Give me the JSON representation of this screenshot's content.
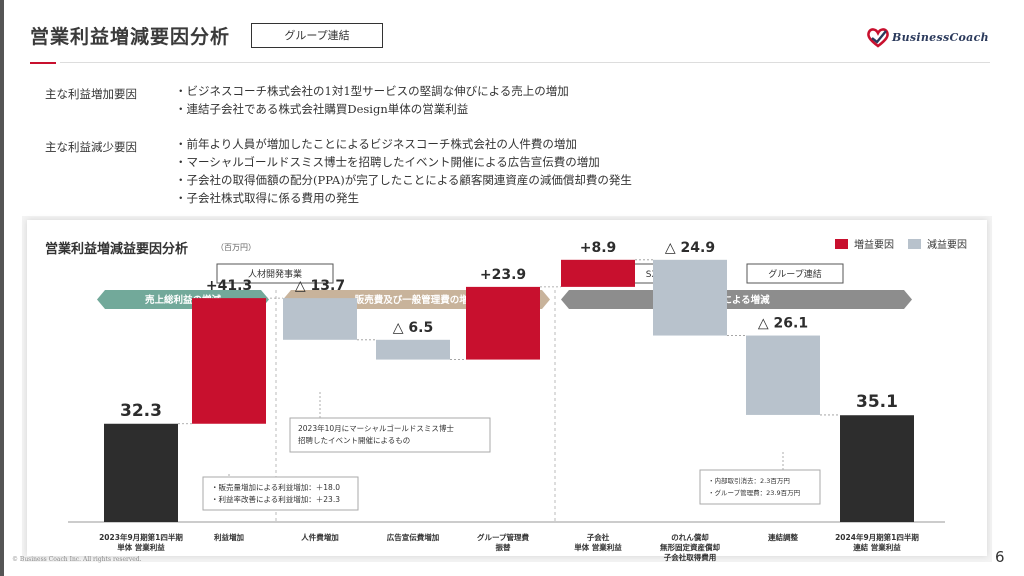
{
  "header": {
    "title": "営業利益増減要因分析",
    "group_label": "グループ連結",
    "logo_text": "BusinessCoach"
  },
  "increase_section": {
    "label": "主な利益増加要因",
    "items": [
      "ビジネスコーチ株式会社の1対1型サービスの堅調な伸びによる売上の増加",
      "連結子会社である株式会社購買Design単体の営業利益"
    ]
  },
  "decrease_section": {
    "label": "主な利益減少要因",
    "items": [
      "前年より人員が増加したことによるビジネスコーチ株式会社の人件費の増加",
      "マーシャルゴールドスミス博士を招聘したイベント開催による広告宣伝費の増加",
      "子会社の取得価額の配分(PPA)が完了したことによる顧客関連資産の減価償却費の発生",
      "子会社株式取得に係る費用の発生"
    ]
  },
  "legend": {
    "increase": "増益要因",
    "decrease": "減益要因",
    "increase_color": "#c8102e",
    "decrease_color": "#b8c2cc"
  },
  "colors": {
    "total": "#2d2d2d",
    "arrow_green": "#72a99a",
    "arrow_tan": "#c8b39b",
    "arrow_gray": "#8d8d8d"
  },
  "chart_data": {
    "type": "waterfall",
    "title": "営業利益増減益要因分析",
    "unit": "（百万円）",
    "ylim": [
      0,
      72
    ],
    "steps": [
      {
        "kind": "total",
        "value": 32.3,
        "label": "32.3",
        "category": [
          "2023年9月期第1四半期",
          "単体 営業利益"
        ]
      },
      {
        "kind": "increase",
        "value": 41.3,
        "label": "+41.3",
        "category": [
          "利益増加"
        ]
      },
      {
        "kind": "decrease",
        "value": -13.7,
        "label": "△ 13.7",
        "category": [
          "人件費増加"
        ]
      },
      {
        "kind": "decrease",
        "value": -6.5,
        "label": "△ 6.5",
        "category": [
          "広告宣伝費増加"
        ]
      },
      {
        "kind": "increase",
        "value": 23.9,
        "label": "+23.9",
        "category": [
          "グループ管理費",
          "振替"
        ]
      },
      {
        "kind": "increase",
        "value": 8.9,
        "label": "+8.9",
        "category": [
          "子会社",
          "単体 営業利益"
        ]
      },
      {
        "kind": "decrease",
        "value": -24.9,
        "label": "△ 24.9",
        "category": [
          "のれん償却",
          "無形固定資産償却",
          "子会社取得費用"
        ]
      },
      {
        "kind": "decrease",
        "value": -26.1,
        "label": "△ 26.1",
        "category": [
          "連結調整"
        ]
      },
      {
        "kind": "total",
        "value": 35.1,
        "label": "35.1",
        "category": [
          "2024年9月期第1四半期",
          "連結 営業利益"
        ]
      }
    ],
    "segment_boxes": [
      "人材開発事業",
      "SXi事業",
      "グループ連結"
    ],
    "phase_arrows": [
      "売上総利益の増減",
      "販売費及び一般管理費の増減",
      "連結による増減"
    ],
    "notes": [
      [
        "・販売量増加による利益増加：＋18.0",
        "・利益率改善による利益増加：＋23.3"
      ],
      [
        "2023年10月にマーシャルゴールドスミス博士",
        "招聘したイベント開催によるもの"
      ],
      [
        "・内部取引消去：2.3百万円",
        "・グループ管理費：23.9百万円"
      ]
    ]
  },
  "footer": {
    "copyright": "© Business Coach Inc. All rights reserved.",
    "page_number": "6"
  }
}
